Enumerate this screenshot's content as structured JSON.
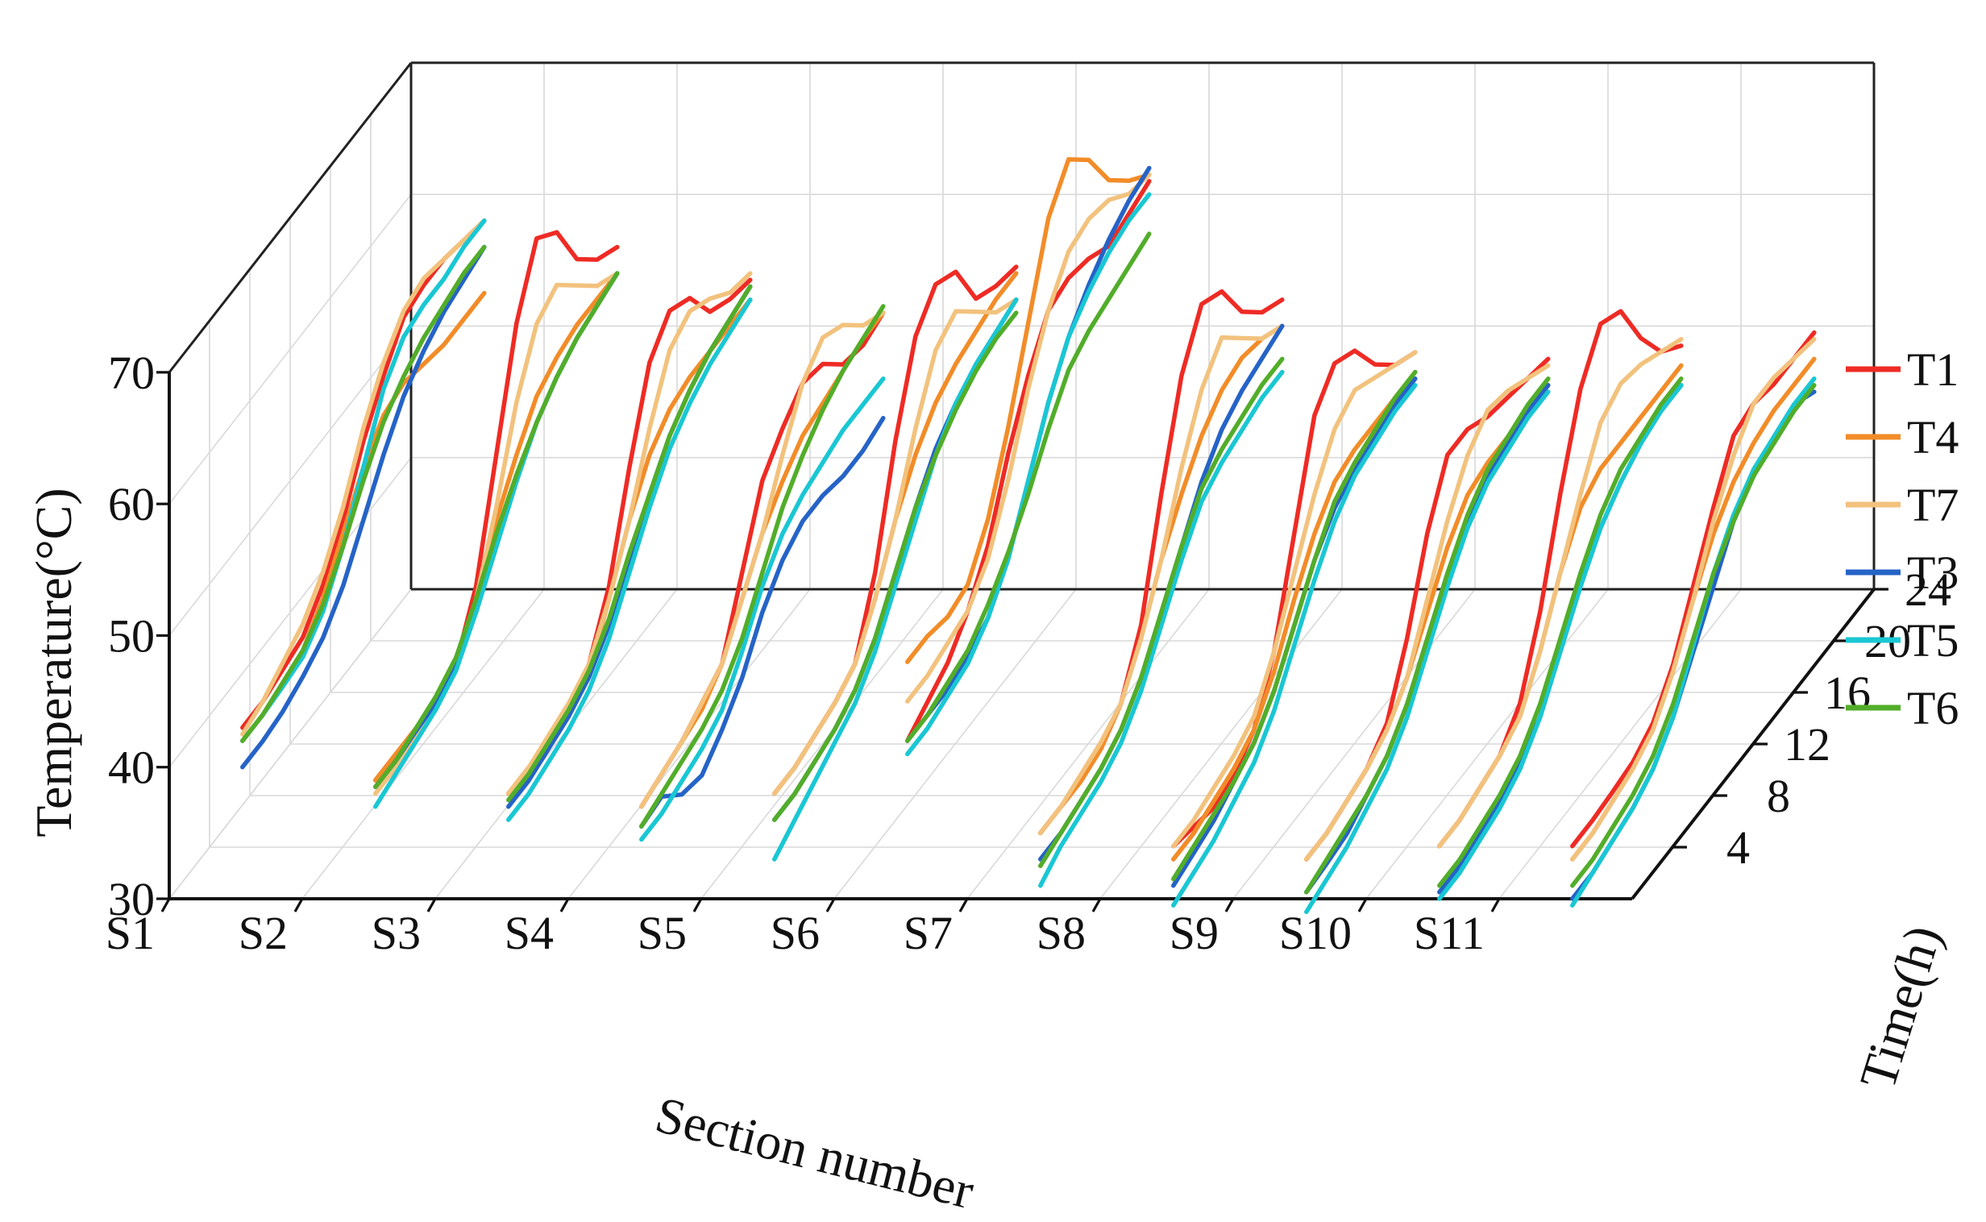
{
  "chart_data": {
    "type": "line",
    "projection": "3d",
    "xlabel": "Section number",
    "ylabel": "Time(h)",
    "zlabel": "Temperature(°C)",
    "categories": [
      "S1",
      "S2",
      "S3",
      "S4",
      "S5",
      "S6",
      "S7",
      "S8",
      "S9",
      "S10",
      "S11"
    ],
    "time_ticks": [
      "4",
      "8",
      "12",
      "16",
      "20",
      "24"
    ],
    "temperature_ticks": [
      "30",
      "40",
      "50",
      "60",
      "70"
    ],
    "zlim": [
      30,
      70
    ],
    "time_range": [
      0,
      24
    ],
    "time_points": [
      0,
      2,
      4,
      6,
      8,
      10,
      12,
      14,
      16,
      18,
      20,
      22,
      24
    ],
    "colors": {
      "T1": "#ee2b24",
      "T4": "#f28c28",
      "T7": "#f2c27d",
      "T3": "#2563c7",
      "T5": "#19c7d3",
      "T6": "#52ad2a"
    },
    "legend": [
      "T1",
      "T4",
      "T7",
      "T3",
      "T5",
      "T6"
    ],
    "series": [
      {
        "name": "T1",
        "sections": [
          [
            43,
            43,
            43.5,
            44,
            46,
            49,
            53,
            56,
            58.5,
            59,
            59,
            58.5,
            58
          ],
          [
            39,
            39,
            39,
            39,
            40,
            44,
            52,
            60,
            64.5,
            63,
            59,
            57,
            56
          ],
          [
            38,
            38,
            38,
            38.5,
            40,
            44,
            51,
            57,
            59,
            58,
            55,
            54,
            53.5
          ],
          [
            37,
            37.5,
            38,
            39,
            40,
            45,
            50,
            52,
            53.5,
            53,
            51,
            50.5,
            51
          ],
          [
            38,
            38,
            38.5,
            39,
            40,
            45,
            53,
            59,
            61,
            60,
            56,
            55,
            54.5
          ],
          [
            42,
            43,
            44,
            46,
            49,
            54,
            58,
            61,
            61.5,
            61,
            60,
            60.5,
            61
          ],
          [
            35,
            35,
            35,
            35.5,
            37,
            41,
            49,
            56,
            59.5,
            58.5,
            55,
            53,
            52
          ],
          [
            34,
            33.5,
            33,
            33.5,
            35,
            39,
            46,
            53,
            55,
            54,
            51,
            49,
            48
          ],
          [
            33,
            33,
            33.5,
            34,
            35.5,
            40,
            46,
            50,
            50,
            49,
            48.5,
            48,
            47.5
          ],
          [
            34,
            34,
            34.5,
            35,
            37,
            42,
            49,
            55,
            58,
            57,
            53,
            50,
            48.5
          ],
          [
            34,
            34,
            34.2,
            34.5,
            35.5,
            38,
            42,
            46,
            49.5,
            50,
            49.5,
            49.5,
            49.5
          ]
        ]
      },
      {
        "name": "T4",
        "sections": [
          [
            42,
            42,
            42.5,
            43,
            45,
            48,
            51,
            53,
            53.5,
            53,
            52.5,
            52.5,
            52.5
          ],
          [
            39,
            39,
            39,
            39,
            40,
            43,
            47,
            50,
            52.5,
            53.5,
            54,
            54,
            54
          ],
          [
            38,
            38,
            38,
            38.5,
            39.5,
            43,
            47,
            50,
            51.5,
            52,
            52,
            52,
            52
          ],
          [
            37,
            37.5,
            38,
            38.5,
            40,
            43,
            46,
            48,
            49.5,
            50,
            50.5,
            51,
            51
          ],
          [
            38,
            38,
            38.5,
            39,
            40,
            43,
            47,
            50,
            52,
            53,
            53.5,
            54,
            54
          ],
          [
            48,
            48,
            47.5,
            48,
            51,
            56,
            62,
            68,
            70.5,
            68.5,
            65,
            63,
            61.5
          ],
          [
            35,
            35,
            35,
            35.5,
            37,
            40,
            44,
            47,
            49.5,
            51,
            51.5,
            51,
            50
          ],
          [
            33,
            33,
            33.5,
            34,
            35,
            37.5,
            41,
            44,
            46,
            46.5,
            46.5,
            46.5,
            46.5
          ],
          [
            33,
            33,
            33.5,
            34,
            35,
            37,
            40,
            43,
            45,
            45.5,
            45.5,
            45.5,
            45.5
          ],
          [
            34,
            34,
            34.5,
            35,
            36,
            39,
            43,
            46,
            47,
            47,
            47,
            47,
            47
          ],
          [
            33,
            33,
            33.5,
            34,
            35,
            37.5,
            41,
            44,
            46,
            47,
            47.5,
            47.5,
            47.5
          ]
        ]
      },
      {
        "name": "T7",
        "sections": [
          [
            42.5,
            43,
            44,
            45,
            47,
            50,
            54,
            57,
            59,
            59.5,
            59,
            58.5,
            58
          ],
          [
            38,
            38,
            38.5,
            39,
            40,
            43,
            48,
            54,
            58,
            59,
            57,
            55,
            54
          ],
          [
            38,
            38,
            38.5,
            39,
            40,
            43,
            47,
            52,
            56,
            57,
            56,
            54.5,
            54
          ],
          [
            37,
            37.5,
            38,
            39,
            40,
            43,
            46,
            50,
            53.5,
            55,
            54,
            52,
            51
          ],
          [
            38,
            38,
            38.5,
            39,
            40,
            43,
            47,
            52,
            56,
            57,
            55,
            53,
            52
          ],
          [
            45,
            45,
            45.5,
            46,
            48,
            52,
            57,
            61,
            63.5,
            64,
            63.5,
            62,
            61.5
          ],
          [
            35,
            35,
            35.5,
            36,
            37,
            40,
            44,
            49,
            53,
            55,
            53,
            51,
            50
          ],
          [
            34,
            34,
            34.5,
            35,
            36,
            39,
            43,
            47,
            50,
            51,
            50,
            49,
            48
          ],
          [
            33,
            33,
            33.5,
            34,
            35,
            37,
            41,
            45,
            48,
            49.5,
            49,
            48,
            47
          ],
          [
            34,
            34,
            34.5,
            35,
            36,
            39,
            43,
            47,
            50.5,
            51.5,
            51,
            50,
            49
          ],
          [
            33,
            33,
            33.5,
            34,
            35,
            37.5,
            41,
            45,
            48,
            50,
            50,
            49.5,
            49
          ]
        ]
      },
      {
        "name": "T3",
        "sections": [
          [
            40,
            40,
            40.3,
            41,
            42,
            44,
            47,
            50,
            52.5,
            54,
            55,
            55.5,
            56
          ],
          [
            38.5,
            38.5,
            38.8,
            39,
            40,
            42,
            45,
            48,
            50.5,
            52,
            53,
            53.5,
            54
          ],
          [
            37,
            37,
            37.5,
            38,
            39,
            41,
            44,
            47,
            49.5,
            51,
            52,
            52.5,
            53
          ],
          [
            35.5,
            35.8,
            34,
            33.5,
            35,
            37,
            40,
            42,
            43,
            43,
            42.5,
            42.5,
            43
          ],
          [
            36,
            36,
            36.5,
            37,
            38,
            40,
            43,
            46,
            48.5,
            50,
            51,
            51.5,
            52
          ],
          [
            42,
            42,
            42,
            42.5,
            43.5,
            46,
            50,
            54,
            57,
            59,
            60.5,
            61.5,
            62
          ],
          [
            33,
            33,
            33.5,
            34,
            35,
            37,
            40,
            43,
            46,
            48,
            49,
            49.5,
            50
          ],
          [
            31,
            31.5,
            32,
            33,
            34,
            36,
            39,
            42,
            44,
            45,
            45.5,
            46,
            46
          ],
          [
            30.5,
            30.7,
            31,
            32,
            33,
            35,
            38,
            41,
            43,
            44.5,
            45,
            45.5,
            45.5
          ],
          [
            30.5,
            30.5,
            31,
            31.5,
            32.5,
            34,
            37,
            40,
            42.5,
            44,
            45,
            45.5,
            45.5
          ],
          [
            30,
            30,
            30.5,
            31,
            32,
            34,
            37,
            40,
            43,
            44.5,
            45.5,
            46,
            45
          ]
        ]
      },
      {
        "name": "T5",
        "sections": [
          [
            42,
            42,
            42.2,
            42.5,
            44,
            47,
            51,
            55,
            57,
            57.5,
            57.5,
            58,
            58
          ],
          [
            37,
            37.5,
            38,
            38.5,
            39.5,
            42,
            45,
            48,
            50.5,
            52,
            53,
            53.5,
            54
          ],
          [
            36,
            36,
            36.5,
            37,
            38,
            40,
            43,
            46,
            48.5,
            50,
            51,
            51.5,
            52
          ],
          [
            34.5,
            34.5,
            35,
            35.5,
            36.5,
            39,
            42,
            44,
            45,
            45.5,
            46,
            46,
            46
          ],
          [
            33,
            34,
            35,
            36,
            37,
            39,
            42,
            45,
            48,
            50,
            51,
            51.5,
            52
          ],
          [
            41,
            41,
            41.5,
            42,
            43.5,
            46,
            50,
            54,
            57,
            58.5,
            59.5,
            60,
            60
          ],
          [
            31,
            32,
            32.5,
            33,
            34,
            36,
            39,
            42,
            44.5,
            45.5,
            46,
            46.5,
            46.5
          ],
          [
            29.5,
            30,
            30.5,
            31.5,
            32.5,
            34.5,
            37.5,
            40.5,
            43,
            44.5,
            45,
            45.5,
            45.5
          ],
          [
            29,
            29.5,
            30,
            31,
            32,
            34,
            37,
            40,
            42.5,
            44,
            44.5,
            45,
            45
          ],
          [
            30,
            30,
            30.5,
            31,
            32,
            34,
            37,
            40,
            42.5,
            44,
            45,
            45.5,
            45.5
          ],
          [
            29.5,
            30,
            30.5,
            31,
            32,
            34,
            37.5,
            41,
            43.5,
            45,
            45.5,
            46,
            46
          ]
        ]
      },
      {
        "name": "T6",
        "sections": [
          [
            42,
            42,
            42.5,
            43,
            44.5,
            47,
            50,
            52.5,
            54,
            55,
            55.5,
            56,
            56
          ],
          [
            38.5,
            38.5,
            39,
            39.5,
            40.5,
            43,
            46,
            48.5,
            50.5,
            52,
            53,
            53.5,
            54
          ],
          [
            37.5,
            37.5,
            38,
            38.5,
            39.5,
            41.5,
            44.5,
            47,
            49.5,
            51,
            52,
            52.5,
            53
          ],
          [
            35.5,
            36,
            36.5,
            37,
            38,
            40,
            43,
            46,
            48,
            49.5,
            50.5,
            51,
            51.5
          ],
          [
            36,
            36,
            36.5,
            37,
            38,
            40,
            43,
            46,
            48,
            49.5,
            50.5,
            51,
            51
          ],
          [
            42,
            42,
            42.5,
            43,
            44.5,
            46.5,
            49,
            52,
            54.5,
            55.5,
            56,
            56.5,
            57
          ],
          [
            32.5,
            33,
            33.5,
            34,
            35,
            37,
            40,
            43,
            45.5,
            46.5,
            47,
            47.5,
            47.5
          ],
          [
            31.5,
            32,
            32.5,
            33,
            34,
            36,
            39,
            42,
            44.5,
            45.5,
            46,
            46.5,
            46.5
          ],
          [
            30.5,
            31,
            31.5,
            32,
            33,
            35,
            38,
            41,
            43.5,
            45,
            45.5,
            46,
            46
          ],
          [
            31,
            31,
            31.5,
            32,
            33,
            35,
            38,
            41,
            43.5,
            45,
            45.5,
            46,
            46
          ],
          [
            31,
            31,
            31.5,
            32,
            33,
            35,
            38,
            41,
            43,
            44.5,
            45,
            45.5,
            45.5
          ]
        ]
      }
    ]
  }
}
